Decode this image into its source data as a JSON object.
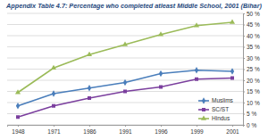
{
  "chart_data": {
    "type": "line",
    "title": "Appendix Table 4.7: Percentage who completed atleast Middle School, 2001 (Bihar)",
    "categories": [
      "1948",
      "1971",
      "1986",
      "1991",
      "1996",
      "1999",
      "2001"
    ],
    "series": [
      {
        "name": "Muslims",
        "color": "#4a7ebb",
        "marker": "diamond",
        "values": [
          8.5,
          14,
          16.5,
          19,
          23,
          24.5,
          24
        ]
      },
      {
        "name": "SC/ST",
        "color": "#7b3f9e",
        "marker": "square",
        "values": [
          3.5,
          8.5,
          12,
          15,
          17,
          20.5,
          21
        ]
      },
      {
        "name": "Hindus",
        "color": "#9bbb59",
        "marker": "triangle",
        "values": [
          14.5,
          25.5,
          31.5,
          36,
          40.5,
          44.5,
          46
        ]
      }
    ],
    "ylim": [
      0,
      50
    ],
    "yticks": [
      {
        "value": 0,
        "label": "0 %"
      },
      {
        "value": 5,
        "label": "5 %"
      },
      {
        "value": 10,
        "label": "10 %"
      },
      {
        "value": 15,
        "label": "15 %"
      },
      {
        "value": 20,
        "label": "20 %"
      },
      {
        "value": 25,
        "label": "25 %"
      },
      {
        "value": 30,
        "label": "30 %"
      },
      {
        "value": 35,
        "label": "35 %"
      },
      {
        "value": 40,
        "label": "40 %"
      },
      {
        "value": 45,
        "label": "45 %"
      },
      {
        "value": 50,
        "label": "50 %"
      }
    ],
    "grid": true,
    "legend": "lower right"
  }
}
